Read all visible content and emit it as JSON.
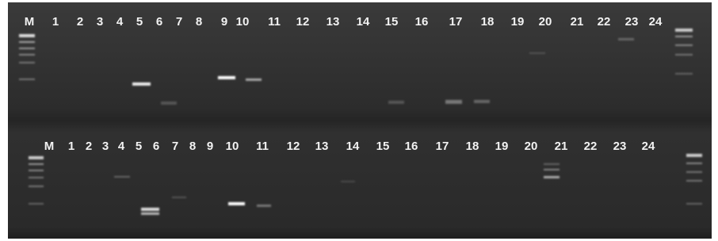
{
  "rows": [
    {
      "labels": [
        "M",
        "1",
        "2",
        "3",
        "4",
        "5",
        "6",
        "7",
        "8",
        "9",
        "10",
        "11",
        "12",
        "13",
        "14",
        "15",
        "16",
        "17",
        "18",
        "19",
        "20",
        "21",
        "22",
        "23",
        "24"
      ]
    },
    {
      "labels": [
        "M",
        "1",
        "2",
        "3",
        "4",
        "5",
        "6",
        "7",
        "8",
        "9",
        "10",
        "11",
        "12",
        "13",
        "14",
        "15",
        "16",
        "17",
        "18",
        "19",
        "20",
        "21",
        "22",
        "23",
        "24"
      ]
    }
  ]
}
